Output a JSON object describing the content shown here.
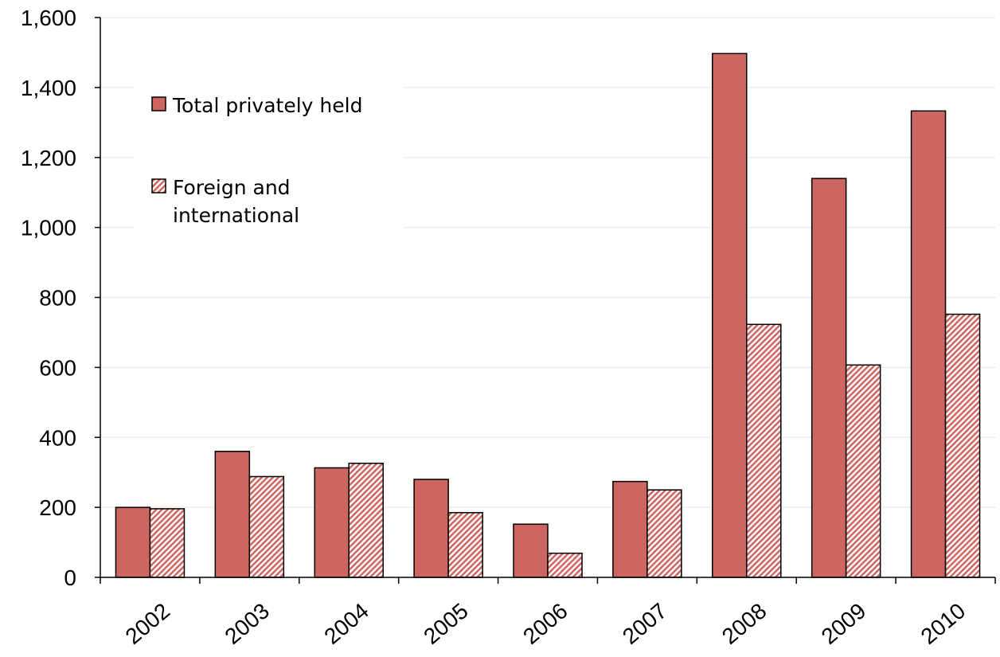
{
  "chart_data": {
    "type": "bar",
    "categories": [
      "2002",
      "2003",
      "2004",
      "2005",
      "2006",
      "2007",
      "2008",
      "2009",
      "2010"
    ],
    "series": [
      {
        "name": "Total privately held",
        "values": [
          200,
          360,
          313,
          280,
          152,
          274,
          1497,
          1140,
          1333
        ],
        "color": "#cd6660",
        "fill": "solid"
      },
      {
        "name": "Foreign and international",
        "name_lines": [
          "Foreign and",
          "international"
        ],
        "values": [
          196,
          288,
          326,
          185,
          69,
          250,
          723,
          607,
          752
        ],
        "color": "#cd6660",
        "fill": "hatched"
      }
    ],
    "yticks": [
      "0",
      "200",
      "400",
      "600",
      "800",
      "1,000",
      "1,200",
      "1,400",
      "1,600"
    ],
    "ylim": [
      0,
      1600
    ],
    "title": "",
    "xlabel": "",
    "ylabel": "",
    "grid": true,
    "legend_position": "top-left"
  }
}
